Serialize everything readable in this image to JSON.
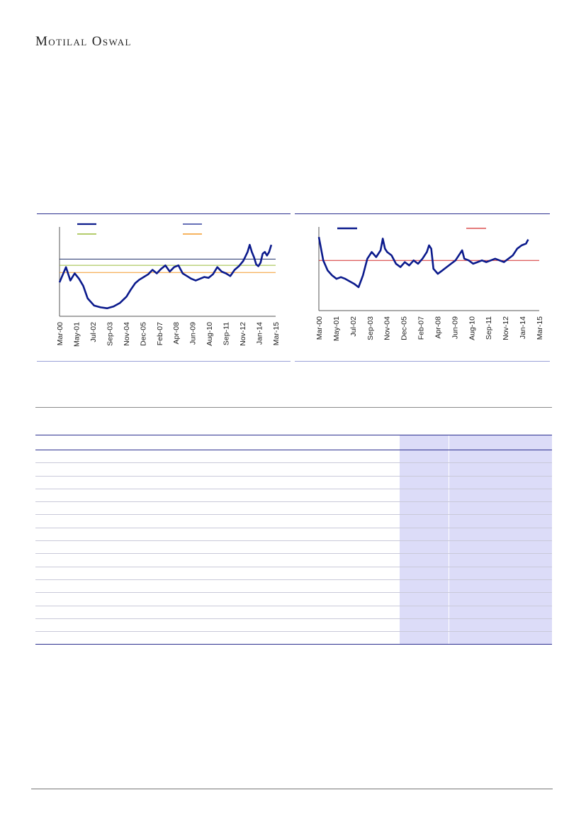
{
  "header": {
    "brand": "Motilal Oswal"
  },
  "colors": {
    "navy": "#0b1a8c",
    "green": "#9bbb3b",
    "orange": "#f39a2a",
    "red": "#d42a2a",
    "midnight": "#1f2f6a",
    "border": "#2b2f8f"
  },
  "chart_data": [
    {
      "type": "line",
      "x_ticks": [
        "Mar-00",
        "May-01",
        "Jul-02",
        "Sep-03",
        "Nov-04",
        "Dec-05",
        "Feb-07",
        "Apr-08",
        "Jun-09",
        "Aug-10",
        "Sep-11",
        "Nov-12",
        "Jan-14",
        "Mar-15"
      ],
      "legend": "top",
      "ylim": [
        0,
        100
      ],
      "reference_lines": [
        {
          "color": "#1f2f6a",
          "value": 64
        },
        {
          "color": "#9bbb3b",
          "value": 57
        },
        {
          "color": "#f39a2a",
          "value": 49
        }
      ],
      "series": [
        {
          "color": "#0b1a8c",
          "points": [
            [
              0,
              38
            ],
            [
              3,
              55
            ],
            [
              5,
              40
            ],
            [
              7,
              48
            ],
            [
              9,
              42
            ],
            [
              11,
              34
            ],
            [
              13,
              20
            ],
            [
              16,
              12
            ],
            [
              19,
              10
            ],
            [
              22,
              9
            ],
            [
              25,
              11
            ],
            [
              28,
              15
            ],
            [
              31,
              22
            ],
            [
              33,
              30
            ],
            [
              35,
              37
            ],
            [
              37,
              41
            ],
            [
              39,
              44
            ],
            [
              41,
              47
            ],
            [
              43,
              52
            ],
            [
              45,
              48
            ],
            [
              47,
              53
            ],
            [
              49,
              57
            ],
            [
              51,
              50
            ],
            [
              53,
              55
            ],
            [
              55,
              57
            ],
            [
              57,
              48
            ],
            [
              59,
              45
            ],
            [
              61,
              42
            ],
            [
              63,
              40
            ],
            [
              65,
              42
            ],
            [
              67,
              44
            ],
            [
              69,
              43
            ],
            [
              71,
              47
            ],
            [
              73,
              55
            ],
            [
              75,
              50
            ],
            [
              77,
              48
            ],
            [
              79,
              45
            ],
            [
              81,
              52
            ],
            [
              83,
              56
            ],
            [
              85,
              62
            ],
            [
              87,
              72
            ],
            [
              88,
              80
            ],
            [
              89,
              72
            ],
            [
              90,
              66
            ],
            [
              91,
              58
            ],
            [
              92,
              56
            ],
            [
              93,
              60
            ],
            [
              94,
              70
            ],
            [
              95,
              72
            ],
            [
              96,
              68
            ],
            [
              97,
              72
            ],
            [
              98,
              80
            ]
          ]
        }
      ]
    },
    {
      "type": "line",
      "x_ticks": [
        "Mar-00",
        "May-01",
        "Jul-02",
        "Sep-03",
        "Nov-04",
        "Dec-05",
        "Feb-07",
        "Apr-08",
        "Jun-09",
        "Aug-10",
        "Sep-11",
        "Nov-12",
        "Jan-14",
        "Mar-15"
      ],
      "legend": "top",
      "ylim": [
        0,
        100
      ],
      "reference_lines": [
        {
          "color": "#d42a2a",
          "value": 60
        }
      ],
      "series": [
        {
          "color": "#0b1a8c",
          "points": [
            [
              0,
              88
            ],
            [
              2,
              60
            ],
            [
              4,
              48
            ],
            [
              6,
              42
            ],
            [
              8,
              38
            ],
            [
              10,
              40
            ],
            [
              12,
              38
            ],
            [
              14,
              35
            ],
            [
              16,
              32
            ],
            [
              18,
              28
            ],
            [
              20,
              42
            ],
            [
              22,
              62
            ],
            [
              24,
              70
            ],
            [
              26,
              64
            ],
            [
              28,
              72
            ],
            [
              29,
              86
            ],
            [
              30,
              74
            ],
            [
              31,
              70
            ],
            [
              33,
              66
            ],
            [
              35,
              56
            ],
            [
              37,
              52
            ],
            [
              39,
              58
            ],
            [
              41,
              54
            ],
            [
              43,
              60
            ],
            [
              45,
              56
            ],
            [
              47,
              62
            ],
            [
              49,
              70
            ],
            [
              50,
              78
            ],
            [
              51,
              74
            ],
            [
              52,
              50
            ],
            [
              54,
              44
            ],
            [
              56,
              48
            ],
            [
              58,
              52
            ],
            [
              60,
              56
            ],
            [
              62,
              60
            ],
            [
              64,
              68
            ],
            [
              65,
              72
            ],
            [
              66,
              62
            ],
            [
              68,
              60
            ],
            [
              70,
              56
            ],
            [
              72,
              58
            ],
            [
              74,
              60
            ],
            [
              76,
              58
            ],
            [
              78,
              60
            ],
            [
              80,
              62
            ],
            [
              82,
              60
            ],
            [
              84,
              58
            ],
            [
              86,
              62
            ],
            [
              88,
              66
            ],
            [
              90,
              74
            ],
            [
              92,
              78
            ],
            [
              94,
              80
            ],
            [
              95,
              85
            ]
          ]
        }
      ]
    }
  ],
  "table": {
    "body_rows": 15
  }
}
